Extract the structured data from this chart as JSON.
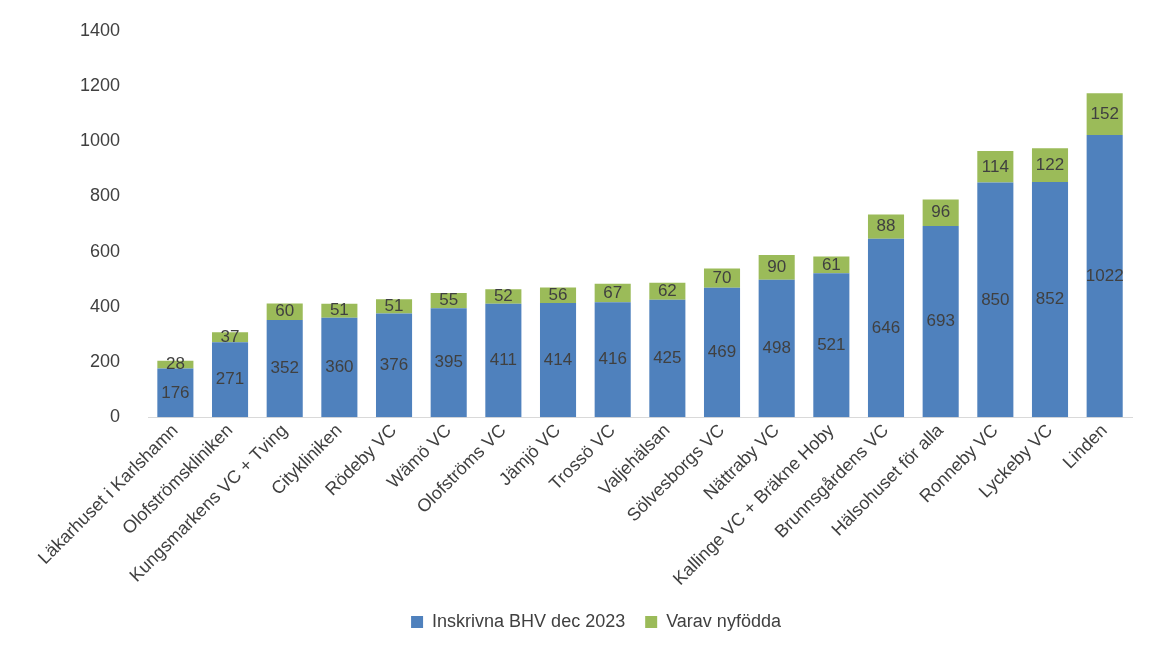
{
  "chart_data": {
    "type": "bar",
    "stacked": true,
    "categories": [
      "Läkarhuset i Karlshamn",
      "Olofströmskliniken",
      "Kungsmarkens VC + Tving",
      "Citykliniken",
      "Rödeby VC",
      "Wämö VC",
      "Olofströms VC",
      "Jämjö VC",
      "Trossö VC",
      "Valjehälsan",
      "Sölvesborgs VC",
      "Nättraby VC",
      "Kallinge VC + Bräkne Hoby",
      "Brunnsgårdens VC",
      "Hälsohuset för alla",
      "Ronneby VC",
      "Lyckeby VC",
      "Linden"
    ],
    "series": [
      {
        "name": "Inskrivna BHV dec 2023",
        "color": "#4f81bd",
        "values": [
          176,
          271,
          352,
          360,
          376,
          395,
          411,
          414,
          416,
          425,
          469,
          498,
          521,
          646,
          693,
          850,
          852,
          1022
        ]
      },
      {
        "name": "Varav nyfödda",
        "color": "#9bbb59",
        "values": [
          28,
          37,
          60,
          51,
          51,
          55,
          52,
          56,
          67,
          62,
          70,
          90,
          61,
          88,
          96,
          114,
          122,
          152
        ]
      }
    ],
    "ylim": [
      0,
      1400
    ],
    "yticks": [
      0,
      200,
      400,
      600,
      800,
      1000,
      1200,
      1400
    ],
    "grid": false,
    "legend": "bottom",
    "data_labels": true
  }
}
